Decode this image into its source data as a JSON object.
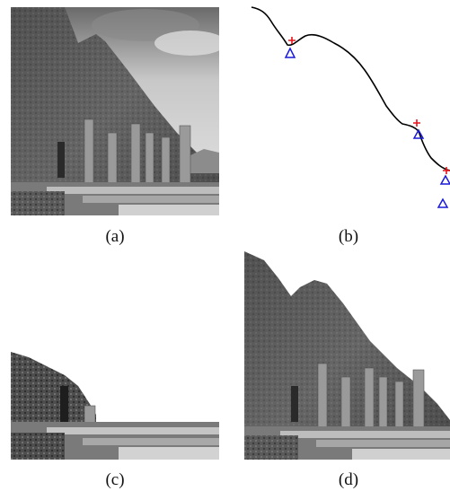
{
  "figure": {
    "captions": {
      "a": "(a)",
      "b": "(b)",
      "c": "(c)",
      "d": "(d)"
    },
    "panels": {
      "a": {
        "content": "grayscale-photo-mountain-ruins"
      },
      "b": {
        "content": "contour-plot-with-markers",
        "marker_colors": {
          "cross": "#e8141a",
          "triangle": "#1a1ad8",
          "curve": "#000000"
        }
      },
      "c": {
        "content": "segmented-photo-lower-region"
      },
      "d": {
        "content": "segmented-photo-mountain-and-columns"
      }
    }
  }
}
